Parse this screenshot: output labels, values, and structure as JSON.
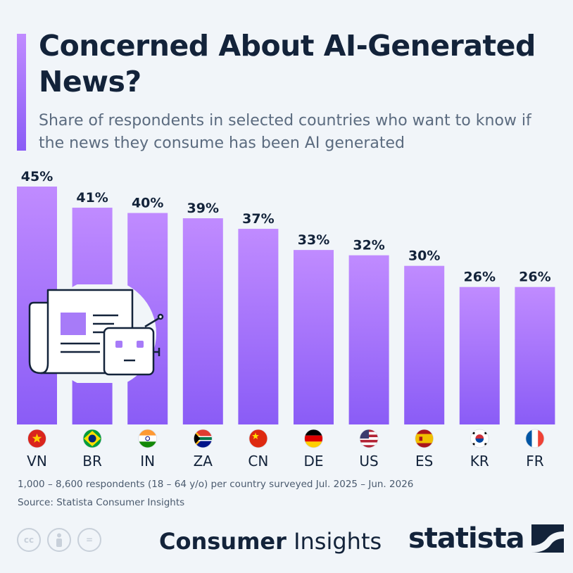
{
  "title": "Concerned About AI-Generated News?",
  "subtitle": "Share of respondents in selected countries who want to know if the news they consume has been AI generated",
  "note": "1,000 – 8,600 respondents (18 – 64 y/o) per country surveyed Jul. 2025 – Jun. 2026",
  "source": "Source: Statista Consumer Insights",
  "footer": {
    "consumer": "Consumer",
    "insights": "Insights",
    "brand": "statista",
    "license_icons": [
      "cc-icon",
      "by-icon",
      "nd-icon"
    ],
    "license_labels": [
      "cc",
      "=",
      ""
    ]
  },
  "colors": {
    "bar_top": "#c08bff",
    "bar_bottom": "#8a5cf6",
    "text_dark": "#13233a",
    "background": "#f1f5f9"
  },
  "chart_data": {
    "type": "bar",
    "categories": [
      "VN",
      "BR",
      "IN",
      "ZA",
      "CN",
      "DE",
      "US",
      "ES",
      "KR",
      "FR"
    ],
    "values": [
      45,
      41,
      40,
      39,
      37,
      33,
      32,
      30,
      26,
      26
    ],
    "value_labels": [
      "45%",
      "41%",
      "40%",
      "39%",
      "37%",
      "33%",
      "32%",
      "30%",
      "26%",
      "26%"
    ],
    "flags": [
      "flag-vietnam-icon",
      "flag-brazil-icon",
      "flag-india-icon",
      "flag-south-africa-icon",
      "flag-china-icon",
      "flag-germany-icon",
      "flag-usa-icon",
      "flag-spain-icon",
      "flag-south-korea-icon",
      "flag-france-icon"
    ],
    "ylim": [
      0,
      45
    ],
    "grid": false,
    "legend": "none",
    "title": "Concerned About AI-Generated News?",
    "xlabel": "",
    "ylabel": ""
  }
}
